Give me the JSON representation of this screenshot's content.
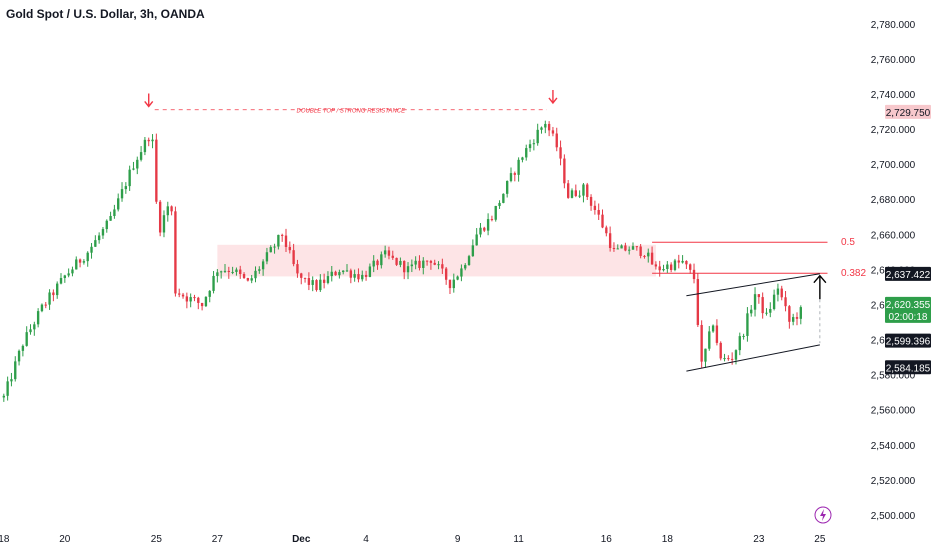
{
  "header": {
    "title": "Gold Spot / U.S. Dollar, 3h, OANDA"
  },
  "colors": {
    "up": "#26a69a",
    "down": "#ef5350",
    "up_body": "#2e9e4a",
    "down_body": "#e53946",
    "annotation": "#f23645",
    "zone_fill": "#fde4e6",
    "channel": "#131722",
    "axis_text": "#131722"
  },
  "chart_data": {
    "type": "candlestick",
    "title": "Gold Spot / U.S. Dollar, 3h, OANDA",
    "ylim": [
      2500,
      2785
    ],
    "y_ticks": [
      2500,
      2520,
      2540,
      2560,
      2580,
      2600,
      2620,
      2640,
      2660,
      2680,
      2700,
      2720,
      2740,
      2760,
      2780
    ],
    "y_tick_labels": [
      "2,500.000",
      "2,520.000",
      "2,540.000",
      "2,560.000",
      "2,580.000",
      "2,600.000",
      "2,620.000",
      "2,640.000",
      "2,660.000",
      "2,680.000",
      "2,700.000",
      "2,720.000",
      "2,740.000",
      "2,760.000",
      "2,780.000"
    ],
    "x_ticks": [
      {
        "label": "18",
        "pos": 0
      },
      {
        "label": "20",
        "pos": 16
      },
      {
        "label": "25",
        "pos": 40
      },
      {
        "label": "27",
        "pos": 56
      },
      {
        "label": "Dec",
        "pos": 78
      },
      {
        "label": "4",
        "pos": 95
      },
      {
        "label": "9",
        "pos": 119
      },
      {
        "label": "11",
        "pos": 135
      },
      {
        "label": "16",
        "pos": 158
      },
      {
        "label": "18",
        "pos": 174
      },
      {
        "label": "23",
        "pos": 198
      },
      {
        "label": "25",
        "pos": 214
      }
    ],
    "x_range": [
      -1,
      224
    ],
    "key_points": [
      {
        "idx": 0,
        "price": 2567
      },
      {
        "idx": 5,
        "price": 2598
      },
      {
        "idx": 10,
        "price": 2618
      },
      {
        "idx": 16,
        "price": 2636
      },
      {
        "idx": 22,
        "price": 2650
      },
      {
        "idx": 28,
        "price": 2668
      },
      {
        "idx": 34,
        "price": 2700
      },
      {
        "idx": 38,
        "price": 2716
      },
      {
        "idx": 39,
        "price": 2712
      },
      {
        "idx": 40,
        "price": 2678
      },
      {
        "idx": 41,
        "price": 2664
      },
      {
        "idx": 43,
        "price": 2676
      },
      {
        "idx": 44,
        "price": 2672
      },
      {
        "idx": 45,
        "price": 2628
      },
      {
        "idx": 48,
        "price": 2624
      },
      {
        "idx": 52,
        "price": 2620
      },
      {
        "idx": 56,
        "price": 2640
      },
      {
        "idx": 60,
        "price": 2640
      },
      {
        "idx": 64,
        "price": 2632
      },
      {
        "idx": 68,
        "price": 2644
      },
      {
        "idx": 73,
        "price": 2660
      },
      {
        "idx": 77,
        "price": 2636
      },
      {
        "idx": 82,
        "price": 2630
      },
      {
        "idx": 88,
        "price": 2640
      },
      {
        "idx": 94,
        "price": 2636
      },
      {
        "idx": 100,
        "price": 2648
      },
      {
        "idx": 106,
        "price": 2640
      },
      {
        "idx": 112,
        "price": 2646
      },
      {
        "idx": 117,
        "price": 2632
      },
      {
        "idx": 120,
        "price": 2640
      },
      {
        "idx": 124,
        "price": 2660
      },
      {
        "idx": 128,
        "price": 2670
      },
      {
        "idx": 132,
        "price": 2688
      },
      {
        "idx": 136,
        "price": 2705
      },
      {
        "idx": 140,
        "price": 2718
      },
      {
        "idx": 142,
        "price": 2724
      },
      {
        "idx": 145,
        "price": 2710
      },
      {
        "idx": 148,
        "price": 2682
      },
      {
        "idx": 152,
        "price": 2686
      },
      {
        "idx": 156,
        "price": 2670
      },
      {
        "idx": 160,
        "price": 2650
      },
      {
        "idx": 164,
        "price": 2652
      },
      {
        "idx": 168,
        "price": 2650
      },
      {
        "idx": 171,
        "price": 2640
      },
      {
        "idx": 174,
        "price": 2642
      },
      {
        "idx": 178,
        "price": 2644
      },
      {
        "idx": 181,
        "price": 2635
      },
      {
        "idx": 183,
        "price": 2585
      },
      {
        "idx": 186,
        "price": 2610
      },
      {
        "idx": 188,
        "price": 2588
      },
      {
        "idx": 191,
        "price": 2590
      },
      {
        "idx": 194,
        "price": 2605
      },
      {
        "idx": 197,
        "price": 2626
      },
      {
        "idx": 200,
        "price": 2613
      },
      {
        "idx": 203,
        "price": 2630
      },
      {
        "idx": 206,
        "price": 2610
      },
      {
        "idx": 209,
        "price": 2616
      }
    ],
    "price_tags": [
      {
        "label": "2,729.750",
        "price": 2729.75,
        "style": "pink"
      },
      {
        "label": "2,637.422",
        "price": 2637.422,
        "style": "black"
      },
      {
        "label": "2,620.355",
        "price": 2620.355,
        "style": "green",
        "sub": "02:00:18"
      },
      {
        "label": "2,599.396",
        "price": 2599.396,
        "style": "black"
      },
      {
        "label": "2,584.185",
        "price": 2584.185,
        "style": "black"
      }
    ],
    "fib_levels": [
      {
        "label": "0.5",
        "price": 2655.5
      },
      {
        "label": "0.382",
        "price": 2637.8
      }
    ],
    "resistance_zone": [
      2636,
      2654
    ],
    "annotation": "DOUBLE TOP / STRONG RESISTANCE",
    "annotation_price": 2731,
    "arrow_tops": [
      {
        "idx": 38,
        "price": 2730
      },
      {
        "idx": 144,
        "price": 2732
      }
    ],
    "channel": {
      "upper": [
        {
          "idx": 179,
          "price": 2625
        },
        {
          "idx": 214,
          "price": 2637.5
        }
      ],
      "lower": [
        {
          "idx": 179,
          "price": 2582
        },
        {
          "idx": 214,
          "price": 2597
        }
      ]
    },
    "target_arrow": {
      "idx": 214,
      "from": 2623,
      "to": 2637
    }
  }
}
